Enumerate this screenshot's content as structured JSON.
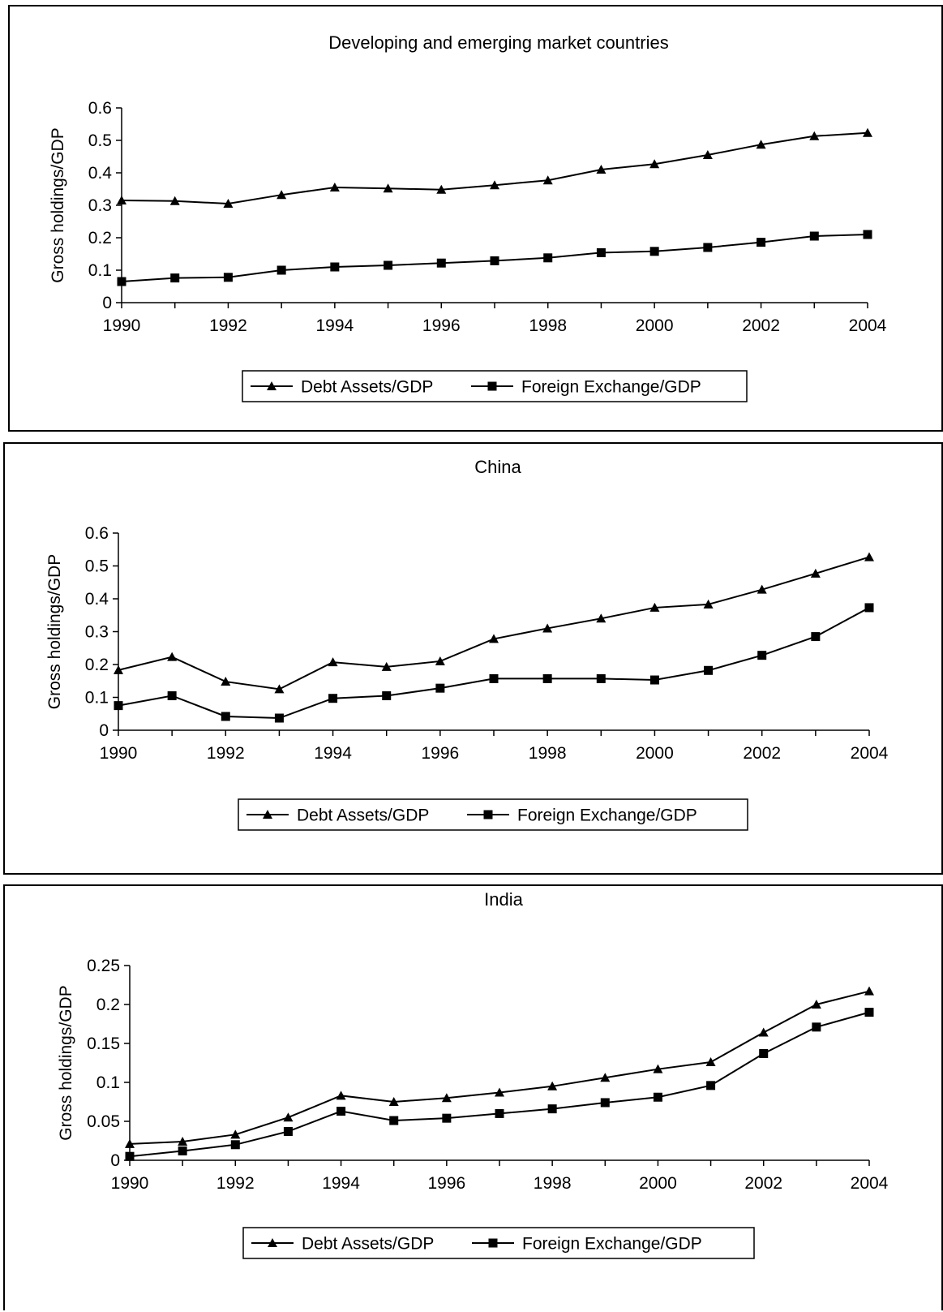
{
  "chart_data": [
    {
      "type": "line",
      "title": "Developing and emerging market countries",
      "xlabel": "",
      "ylabel": "Gross holdings/GDP",
      "x": [
        1990,
        1991,
        1992,
        1993,
        1994,
        1995,
        1996,
        1997,
        1998,
        1999,
        2000,
        2001,
        2002,
        2003,
        2004
      ],
      "xticks": [
        "1990",
        "1992",
        "1994",
        "1996",
        "1998",
        "2000",
        "2002",
        "2004"
      ],
      "ylim": [
        0,
        0.6
      ],
      "yticks": [
        "0",
        "0.1",
        "0.2",
        "0.3",
        "0.4",
        "0.5",
        "0.6"
      ],
      "grid": false,
      "legend": "bottom",
      "series": [
        {
          "name": "Debt Assets/GDP",
          "marker": "triangle",
          "values": [
            0.315,
            0.313,
            0.305,
            0.332,
            0.355,
            0.352,
            0.348,
            0.362,
            0.377,
            0.41,
            0.427,
            0.455,
            0.487,
            0.513,
            0.523
          ]
        },
        {
          "name": "Foreign Exchange/GDP",
          "marker": "square",
          "values": [
            0.065,
            0.076,
            0.078,
            0.1,
            0.11,
            0.115,
            0.122,
            0.129,
            0.138,
            0.154,
            0.158,
            0.17,
            0.186,
            0.205,
            0.21
          ]
        }
      ]
    },
    {
      "type": "line",
      "title": "China",
      "xlabel": "",
      "ylabel": "Gross holdings/GDP",
      "x": [
        1990,
        1991,
        1992,
        1993,
        1994,
        1995,
        1996,
        1997,
        1998,
        1999,
        2000,
        2001,
        2002,
        2003,
        2004
      ],
      "xticks": [
        "1990",
        "1992",
        "1994",
        "1996",
        "1998",
        "2000",
        "2002",
        "2004"
      ],
      "ylim": [
        0,
        0.6
      ],
      "yticks": [
        "0",
        "0.1",
        "0.2",
        "0.3",
        "0.4",
        "0.5",
        "0.6"
      ],
      "grid": false,
      "legend": "bottom",
      "series": [
        {
          "name": "Debt Assets/GDP",
          "marker": "triangle",
          "values": [
            0.183,
            0.223,
            0.148,
            0.125,
            0.207,
            0.193,
            0.21,
            0.278,
            0.31,
            0.34,
            0.373,
            0.383,
            0.428,
            0.477,
            0.527
          ]
        },
        {
          "name": "Foreign Exchange/GDP",
          "marker": "square",
          "values": [
            0.075,
            0.105,
            0.042,
            0.037,
            0.097,
            0.105,
            0.128,
            0.157,
            0.157,
            0.157,
            0.153,
            0.182,
            0.228,
            0.285,
            0.373
          ]
        }
      ]
    },
    {
      "type": "line",
      "title": "India",
      "xlabel": "",
      "ylabel": "Gross holdings/GDP",
      "x": [
        1990,
        1991,
        1992,
        1993,
        1994,
        1995,
        1996,
        1997,
        1998,
        1999,
        2000,
        2001,
        2002,
        2003,
        2004
      ],
      "xticks": [
        "1990",
        "1992",
        "1994",
        "1996",
        "1998",
        "2000",
        "2002",
        "2004"
      ],
      "ylim": [
        0,
        0.25
      ],
      "yticks": [
        "0",
        "0.05",
        "0.1",
        "0.15",
        "0.2",
        "0.25"
      ],
      "grid": false,
      "legend": "bottom",
      "series": [
        {
          "name": "Debt Assets/GDP",
          "marker": "triangle",
          "values": [
            0.021,
            0.024,
            0.033,
            0.055,
            0.083,
            0.075,
            0.08,
            0.087,
            0.095,
            0.106,
            0.117,
            0.126,
            0.164,
            0.2,
            0.217
          ]
        },
        {
          "name": "Foreign Exchange/GDP",
          "marker": "square",
          "values": [
            0.005,
            0.012,
            0.02,
            0.037,
            0.063,
            0.051,
            0.054,
            0.06,
            0.066,
            0.074,
            0.081,
            0.096,
            0.137,
            0.171,
            0.19
          ]
        }
      ]
    }
  ]
}
